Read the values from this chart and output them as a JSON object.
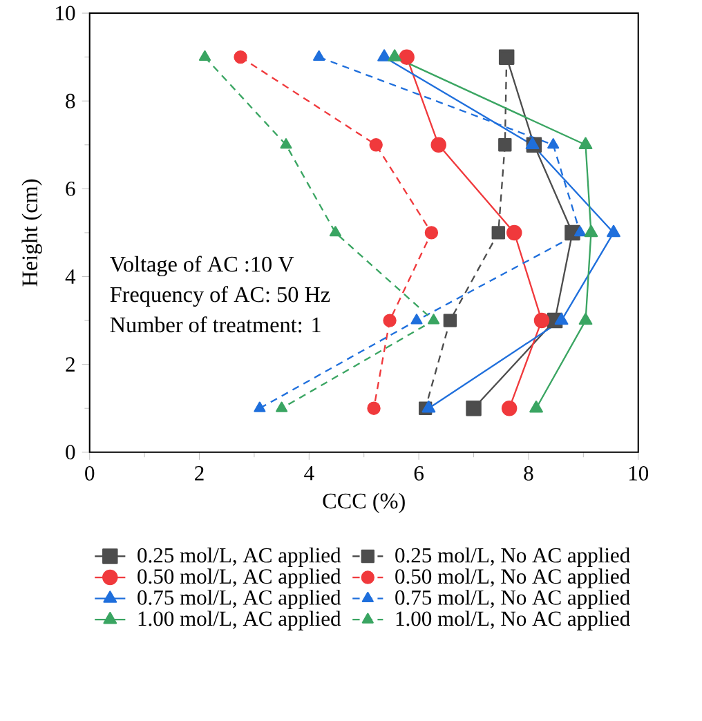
{
  "chart_data": {
    "type": "line",
    "xlabel": "CCC (%)",
    "ylabel": "Height (cm)",
    "xlim": [
      0,
      10
    ],
    "ylim": [
      0,
      10
    ],
    "xticks": [
      0,
      2,
      4,
      6,
      8,
      10
    ],
    "yticks": [
      0,
      2,
      4,
      6,
      8,
      10
    ],
    "legend": "bottom",
    "grid": false,
    "annotations": [
      "Voltage of AC :10 V",
      "Frequency of AC: 50 Hz",
      "Number of treatment: 1"
    ],
    "series": [
      {
        "name": "0.25 mol/L, AC applied",
        "color": "#4d4d4d",
        "marker": "square",
        "line_style": "solid",
        "x": [
          7.6,
          8.1,
          8.8,
          8.48,
          7.0
        ],
        "values": [
          9,
          7,
          5,
          3,
          1
        ]
      },
      {
        "name": "0.25 mol/L, No AC applied",
        "color": "#4d4d4d",
        "marker": "square",
        "line_style": "dashed",
        "x": [
          7.6,
          7.57,
          7.45,
          6.57,
          6.12
        ],
        "values": [
          9,
          7,
          5,
          3,
          1
        ]
      },
      {
        "name": "0.50 mol/L, AC applied",
        "color": "#f0393c",
        "marker": "circle",
        "line_style": "solid",
        "x": [
          5.78,
          6.36,
          7.74,
          8.24,
          7.65
        ],
        "values": [
          9,
          7,
          5,
          3,
          1
        ]
      },
      {
        "name": "0.50 mol/L, No AC applied",
        "color": "#f0393c",
        "marker": "circle",
        "line_style": "dashed",
        "x": [
          2.75,
          5.22,
          6.23,
          5.47,
          5.18
        ],
        "values": [
          9,
          7,
          5,
          3,
          1
        ]
      },
      {
        "name": "0.75 mol/L, AC applied",
        "color": "#1f6fdc",
        "marker": "triangle",
        "line_style": "solid",
        "x": [
          5.37,
          8.07,
          9.55,
          8.6,
          6.18
        ],
        "values": [
          9,
          7,
          5,
          3,
          1
        ]
      },
      {
        "name": "0.75 mol/L, No AC applied",
        "color": "#1f6fdc",
        "marker": "triangle",
        "line_style": "dashed",
        "x": [
          4.18,
          8.45,
          8.94,
          5.96,
          3.1
        ],
        "values": [
          9,
          7,
          5,
          3,
          1
        ]
      },
      {
        "name": "1.00 mol/L, AC applied",
        "color": "#3aa562",
        "marker": "triangle down",
        "line_style": "solid",
        "x": [
          5.56,
          9.04,
          9.14,
          9.04,
          8.14
        ],
        "values": [
          9,
          7,
          5,
          3,
          1
        ]
      },
      {
        "name": "1.00 mol/L, No AC applied",
        "color": "#3aa562",
        "marker": "triangle down",
        "line_style": "dashed",
        "x": [
          2.1,
          3.58,
          4.48,
          6.27,
          3.5
        ],
        "values": [
          9,
          7,
          5,
          3,
          1
        ]
      }
    ]
  }
}
